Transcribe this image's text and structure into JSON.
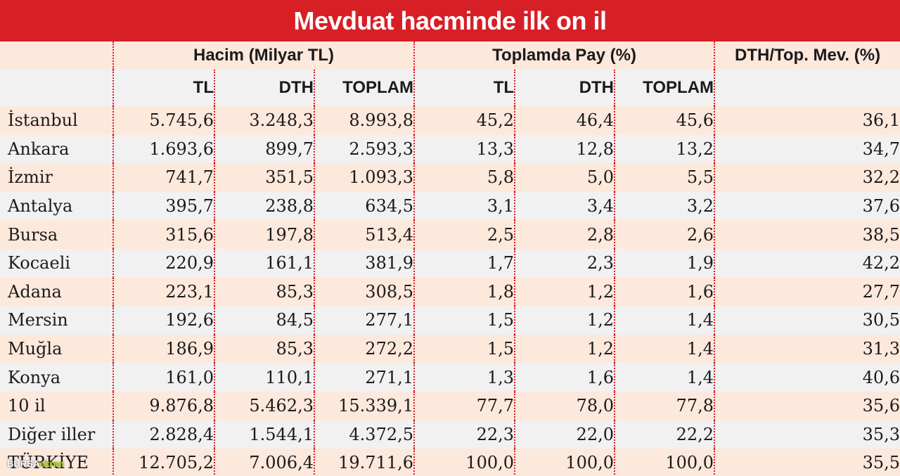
{
  "title": "Mevduat hacminde ilk on il",
  "group_headers": {
    "volume": "Hacim (Milyar TL)",
    "share": "Toplamda Pay (%)",
    "ratio": "DTH/Top. Mev. (%)"
  },
  "sub_headers": {
    "volume": [
      "TL",
      "DTH",
      "TOPLAM"
    ],
    "share": [
      "TL",
      "DTH",
      "TOPLAM"
    ]
  },
  "rows": [
    {
      "city": "İstanbul",
      "values": [
        "5.745,6",
        "3.248,3",
        "8.993,8",
        "45,2",
        "46,4",
        "45,6",
        "36,1"
      ]
    },
    {
      "city": "Ankara",
      "values": [
        "1.693,6",
        "899,7",
        "2.593,3",
        "13,3",
        "12,8",
        "13,2",
        "34,7"
      ]
    },
    {
      "city": "İzmir",
      "values": [
        "741,7",
        "351,5",
        "1.093,3",
        "5,8",
        "5,0",
        "5,5",
        "32,2"
      ]
    },
    {
      "city": "Antalya",
      "values": [
        "395,7",
        "238,8",
        "634,5",
        "3,1",
        "3,4",
        "3,2",
        "37,6"
      ]
    },
    {
      "city": "Bursa",
      "values": [
        "315,6",
        "197,8",
        "513,4",
        "2,5",
        "2,8",
        "2,6",
        "38,5"
      ]
    },
    {
      "city": "Kocaeli",
      "values": [
        "220,9",
        "161,1",
        "381,9",
        "1,7",
        "2,3",
        "1,9",
        "42,2"
      ]
    },
    {
      "city": "Adana",
      "values": [
        "223,1",
        "85,3",
        "308,5",
        "1,8",
        "1,2",
        "1,6",
        "27,7"
      ]
    },
    {
      "city": "Mersin",
      "values": [
        "192,6",
        "84,5",
        "277,1",
        "1,5",
        "1,2",
        "1,4",
        "30,5"
      ]
    },
    {
      "city": "Muğla",
      "values": [
        "186,9",
        "85,3",
        "272,2",
        "1,5",
        "1,2",
        "1,4",
        "31,3"
      ]
    },
    {
      "city": "Konya",
      "values": [
        "161,0",
        "110,1",
        "271,1",
        "1,3",
        "1,6",
        "1,4",
        "40,6"
      ]
    },
    {
      "city": "10 il",
      "values": [
        "9.876,8",
        "5.462,3",
        "15.339,1",
        "77,7",
        "78,0",
        "77,8",
        "35,6"
      ]
    },
    {
      "city": "Diğer iller",
      "values": [
        "2.828,4",
        "1.544,1",
        "4.372,5",
        "22,3",
        "22,0",
        "22,2",
        "35,3"
      ]
    },
    {
      "city": "TÜRKİYE",
      "values": [
        "12.705,2",
        "7.006,4",
        "19.711,6",
        "100,0",
        "100,0",
        "100,0",
        "35,5"
      ]
    }
  ],
  "watermark": {
    "part1": "BURSA",
    "part2": "ekran"
  },
  "colors": {
    "accent": "#d71f26",
    "row_a": "#fde8dc",
    "row_b": "#f1f1f2"
  }
}
